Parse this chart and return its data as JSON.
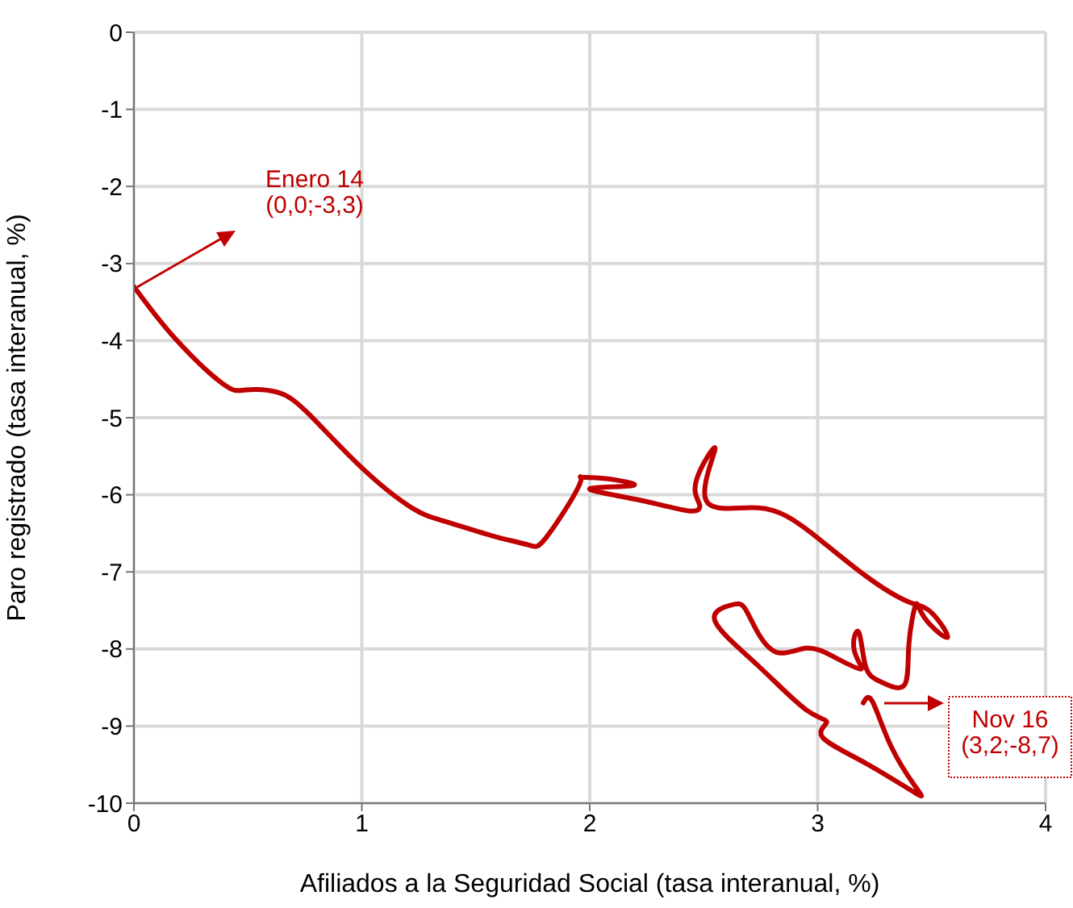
{
  "chart_data": {
    "type": "line",
    "xlabel": "Afiliados a la Seguridad Social (tasa interanual, %)",
    "ylabel": "Paro registrado (tasa interanual, %)",
    "xlim": [
      0,
      4
    ],
    "xticks": [
      0,
      1,
      2,
      3,
      4
    ],
    "ylim": [
      -10,
      0
    ],
    "yticks": [
      0,
      -1,
      -2,
      -3,
      -4,
      -5,
      -6,
      -7,
      -8,
      -9,
      -10
    ],
    "grid": true,
    "marker": "none",
    "line_style": "solid",
    "series": [
      {
        "color": "#c00000",
        "x": [
          0,
          0.18,
          0.39,
          0.49,
          0.63,
          0.77,
          1.0,
          1.22,
          1.36,
          1.57,
          1.73,
          1.81,
          1.95,
          1.96,
          2.07,
          2.19,
          2.0,
          2.22,
          2.44,
          2.48,
          2.47,
          2.55,
          2.51,
          2.74,
          2.97,
          3.21,
          3.4,
          3.5,
          3.57,
          3.47,
          3.43,
          3.4,
          3.38,
          3.28,
          3.21,
          3.18,
          3.16,
          3.19,
          3.07,
          2.95,
          2.83,
          2.74,
          2.68,
          2.62,
          2.55,
          2.74,
          2.95,
          3.04,
          3.02,
          3.21,
          3.43,
          3.43,
          3.32,
          3.24,
          3.2
        ],
        "values": [
          -3.3,
          -3.97,
          -4.56,
          -4.64,
          -4.67,
          -4.96,
          -5.65,
          -6.17,
          -6.34,
          -6.53,
          -6.65,
          -6.55,
          -5.9,
          -5.77,
          -5.79,
          -5.88,
          -5.92,
          -6.07,
          -6.21,
          -6.11,
          -5.79,
          -5.4,
          -6.07,
          -6.17,
          -6.49,
          -7.05,
          -7.39,
          -7.53,
          -7.85,
          -7.6,
          -7.43,
          -7.95,
          -8.47,
          -8.43,
          -8.22,
          -7.78,
          -8.01,
          -8.26,
          -8.1,
          -7.99,
          -8.05,
          -7.8,
          -7.47,
          -7.43,
          -7.64,
          -8.22,
          -8.79,
          -8.95,
          -9.14,
          -9.48,
          -9.87,
          -9.79,
          -9.25,
          -8.68,
          -8.7
        ]
      }
    ],
    "annotations": [
      "Enero 14\n(0,0;-3,3)",
      "Nov 16\n(3,2;-8,7)"
    ]
  }
}
